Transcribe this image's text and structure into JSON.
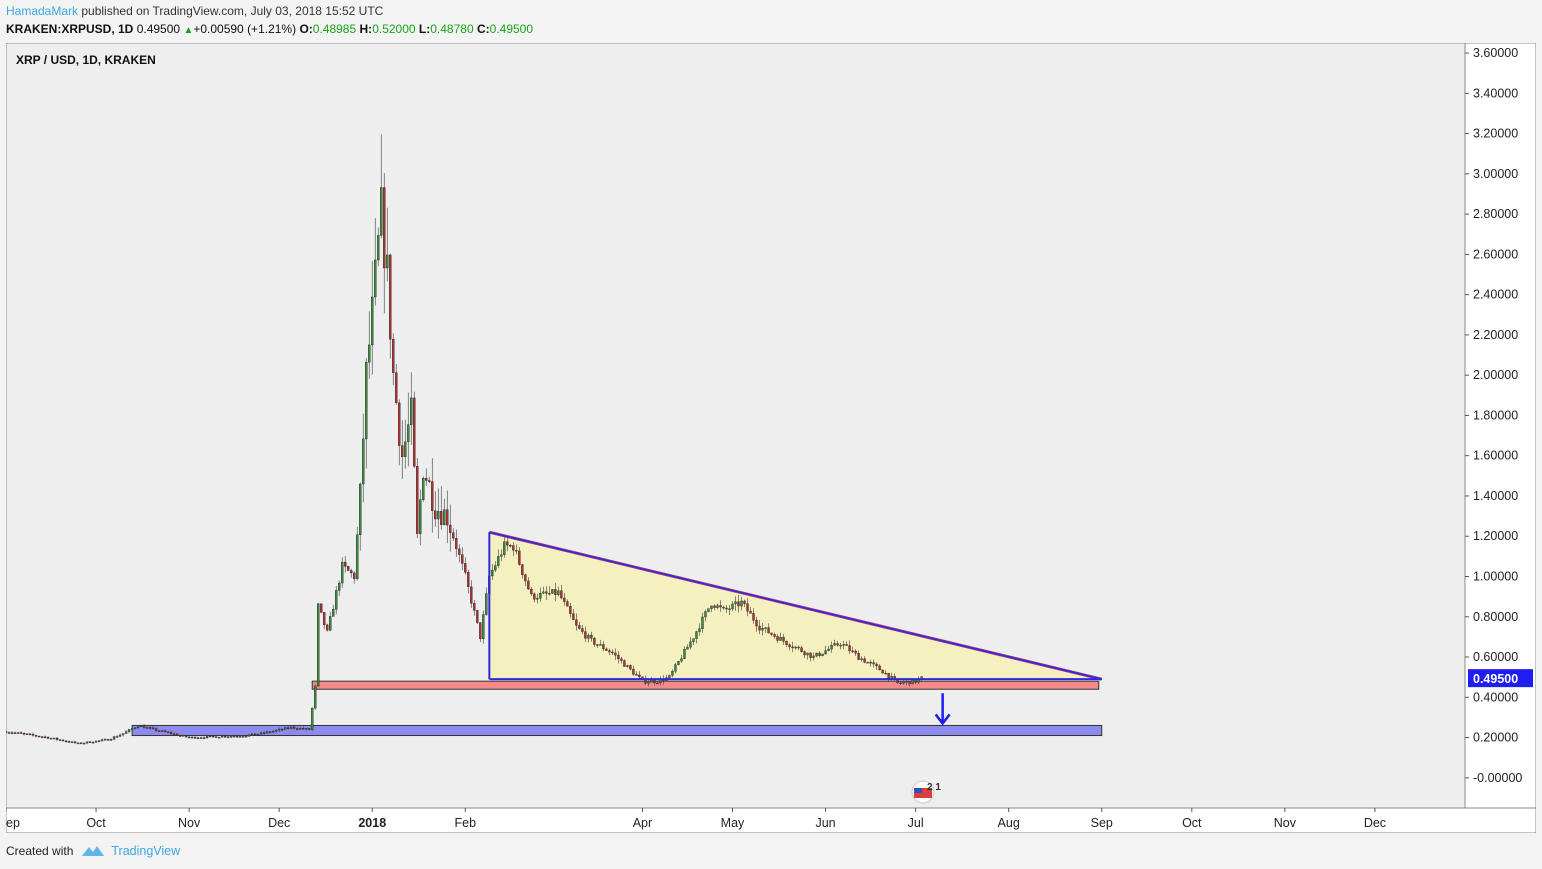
{
  "header": {
    "author": "HamadaMark",
    "published_text": " published on TradingView.com, July 03, 2018 15:52 UTC"
  },
  "symbol_bar": {
    "symbol": "KRAKEN:XRPUSD, 1D",
    "last": "0.49500",
    "change": "+0.00590 (+1.21%)",
    "open_label": "O:",
    "open": "0.48985",
    "high_label": "H:",
    "high": "0.52000",
    "low_label": "L:",
    "low": "0.48780",
    "close_label": "C:",
    "close": "0.49500"
  },
  "chart_data": {
    "type": "candlestick",
    "title": "XRP / USD, 1D, KRAKEN",
    "symbol": "XRP / USD",
    "interval": "1D",
    "exchange": "KRAKEN",
    "y_ticks": [
      "3.60000",
      "3.40000",
      "3.20000",
      "3.00000",
      "2.80000",
      "2.60000",
      "2.40000",
      "2.20000",
      "2.00000",
      "1.80000",
      "1.60000",
      "1.40000",
      "1.20000",
      "1.00000",
      "0.80000",
      "0.60000",
      "0.40000",
      "0.20000",
      "-0.00000"
    ],
    "y_tick_values": [
      3.6,
      3.4,
      3.2,
      3.0,
      2.8,
      2.6,
      2.4,
      2.2,
      2.0,
      1.8,
      1.6,
      1.4,
      1.2,
      1.0,
      0.8,
      0.6,
      0.4,
      0.2,
      0.0
    ],
    "ylim": [
      -0.15,
      3.65
    ],
    "x_ticks": [
      "ep",
      "Oct",
      "Nov",
      "Dec",
      "2018",
      "Feb",
      "Apr",
      "May",
      "Jun",
      "Jul",
      "Aug",
      "Sep",
      "Oct",
      "Nov",
      "Dec"
    ],
    "x_tick_dates": [
      "2017-09-01",
      "2017-10-01",
      "2017-11-01",
      "2017-12-01",
      "2018-01-01",
      "2018-02-01",
      "2018-04-01",
      "2018-05-01",
      "2018-06-01",
      "2018-07-01",
      "2018-08-01",
      "2018-09-01",
      "2018-10-01",
      "2018-11-01",
      "2018-12-01"
    ],
    "x_range": [
      "2017-09-01",
      "2018-12-31"
    ],
    "last_price": 0.495,
    "last_price_label": "0.49500",
    "colors": {
      "up": "#3b8a3b",
      "down": "#b03030",
      "background": "#eeeeee",
      "axis_label_bg": "#1e1ef0"
    },
    "price_path": [
      [
        "2017-09-01",
        0.23
      ],
      [
        "2017-09-15",
        0.2
      ],
      [
        "2017-09-25",
        0.17
      ],
      [
        "2017-10-05",
        0.19
      ],
      [
        "2017-10-10",
        0.22
      ],
      [
        "2017-10-15",
        0.26
      ],
      [
        "2017-10-20",
        0.24
      ],
      [
        "2017-11-01",
        0.2
      ],
      [
        "2017-11-20",
        0.21
      ],
      [
        "2017-11-25",
        0.22
      ],
      [
        "2017-12-05",
        0.25
      ],
      [
        "2017-12-11",
        0.24
      ],
      [
        "2017-12-13",
        0.45
      ],
      [
        "2017-12-14",
        0.85
      ],
      [
        "2017-12-17",
        0.72
      ],
      [
        "2017-12-22",
        1.05
      ],
      [
        "2017-12-26",
        1.0
      ],
      [
        "2017-12-28",
        1.4
      ],
      [
        "2017-12-30",
        2.0
      ],
      [
        "2018-01-01",
        2.3
      ],
      [
        "2018-01-04",
        2.8
      ],
      [
        "2018-01-06",
        2.5
      ],
      [
        "2018-01-08",
        2.0
      ],
      [
        "2018-01-11",
        1.6
      ],
      [
        "2018-01-14",
        1.8
      ],
      [
        "2018-01-16",
        1.2
      ],
      [
        "2018-01-18",
        1.55
      ],
      [
        "2018-01-22",
        1.35
      ],
      [
        "2018-01-26",
        1.3
      ],
      [
        "2018-02-01",
        1.0
      ],
      [
        "2018-02-06",
        0.7
      ],
      [
        "2018-02-09",
        1.0
      ],
      [
        "2018-02-14",
        1.15
      ],
      [
        "2018-02-17",
        1.15
      ],
      [
        "2018-02-23",
        0.9
      ],
      [
        "2018-03-04",
        0.92
      ],
      [
        "2018-03-10",
        0.75
      ],
      [
        "2018-03-15",
        0.68
      ],
      [
        "2018-03-22",
        0.62
      ],
      [
        "2018-04-01",
        0.48
      ],
      [
        "2018-04-06",
        0.48
      ],
      [
        "2018-04-10",
        0.5
      ],
      [
        "2018-04-14",
        0.6
      ],
      [
        "2018-04-18",
        0.7
      ],
      [
        "2018-04-24",
        0.87
      ],
      [
        "2018-04-28",
        0.83
      ],
      [
        "2018-05-04",
        0.87
      ],
      [
        "2018-05-10",
        0.75
      ],
      [
        "2018-05-18",
        0.68
      ],
      [
        "2018-05-28",
        0.6
      ],
      [
        "2018-06-06",
        0.67
      ],
      [
        "2018-06-12",
        0.6
      ],
      [
        "2018-06-20",
        0.53
      ],
      [
        "2018-06-25",
        0.47
      ],
      [
        "2018-07-01",
        0.48
      ],
      [
        "2018-07-03",
        0.495
      ]
    ],
    "annotations": [
      {
        "type": "descending-triangle",
        "fill": "#f5f0c0",
        "points": [
          [
            "2018-02-09",
            1.22
          ],
          [
            "2018-09-01",
            0.49
          ],
          [
            "2018-02-09",
            0.49
          ]
        ]
      },
      {
        "type": "support-zone",
        "fill": "#f58a8a",
        "from": "2017-12-12",
        "to": "2018-08-31",
        "ylim": [
          0.44,
          0.48
        ]
      },
      {
        "type": "support-zone",
        "fill": "#8c8cf0",
        "from": "2017-10-13",
        "to": "2018-09-01",
        "ylim": [
          0.21,
          0.26
        ]
      },
      {
        "type": "arrow-down",
        "color": "#1e1ef0",
        "at": "2018-07-10",
        "from": 0.42,
        "to": 0.27
      }
    ]
  },
  "event_badge": {
    "label": "2 1",
    "icon": "flag-icon"
  },
  "footer": {
    "created_with": "Created with",
    "brand": "TradingView"
  }
}
